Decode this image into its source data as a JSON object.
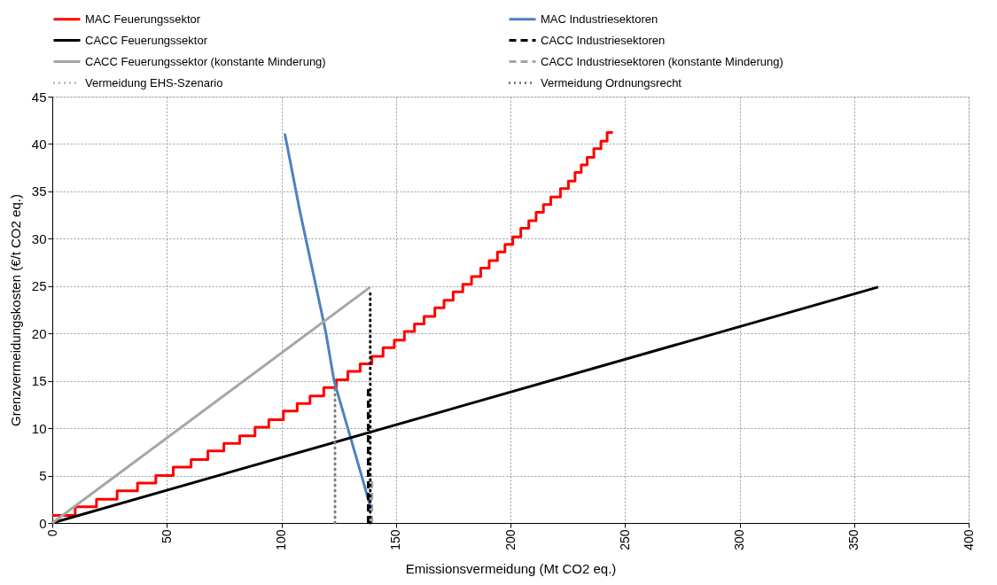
{
  "chart_data": {
    "type": "line",
    "xlabel": "Emissionsvermeidung (Mt CO2 eq.)",
    "ylabel": "Grenzvermeidungskosten (€/t CO2 eq.)",
    "xlim": [
      0,
      400
    ],
    "xticks": [
      0,
      50,
      100,
      150,
      200,
      250,
      300,
      350,
      400
    ],
    "ylim": [
      0,
      45
    ],
    "yticks": [
      0,
      5,
      10,
      15,
      20,
      25,
      30,
      35,
      40,
      45
    ],
    "grid": true,
    "legend": "top",
    "series": [
      {
        "name": "MAC Feuerungssektor",
        "type": "step",
        "color": "#ff0000",
        "line_style": "solid",
        "x": [
          0,
          10,
          19.3,
          28.3,
          37.2,
          45.2,
          52.8,
          60.6,
          67.9,
          74.9,
          81.8,
          88.5,
          94.5,
          100.9,
          106.9,
          112.5,
          118.5,
          124,
          129,
          134.4,
          139.5,
          144.4,
          149.3,
          153.7,
          158.1,
          162.3,
          167,
          171,
          175,
          179.2,
          183,
          187,
          190.7,
          194.3,
          197.6,
          201,
          204.5,
          208,
          211.2,
          214.4,
          217.6,
          221.8,
          225.3,
          228.2,
          230.9,
          233.5,
          236.4,
          239.5,
          242.2,
          244.7
        ],
        "values": [
          0.8,
          1.7,
          2.5,
          3.4,
          4.2,
          5.0,
          5.9,
          6.7,
          7.6,
          8.4,
          9.2,
          10.1,
          10.9,
          11.8,
          12.6,
          13.4,
          14.3,
          15.1,
          16.0,
          16.8,
          17.6,
          18.5,
          19.3,
          20.2,
          21.0,
          21.8,
          22.7,
          23.5,
          24.4,
          25.2,
          26.0,
          26.9,
          27.7,
          28.6,
          29.4,
          30.2,
          31.1,
          31.9,
          32.8,
          33.6,
          34.4,
          35.3,
          36.1,
          37.0,
          37.8,
          38.6,
          39.5,
          40.3,
          41.2,
          41.2
        ]
      },
      {
        "name": "MAC Industriesektoren",
        "type": "line",
        "color": "#4f81bd",
        "line_style": "solid",
        "x": [
          101.5,
          108,
          115.1,
          119.5,
          123,
          129,
          135,
          139.1
        ],
        "values": [
          41.1,
          33,
          25,
          20,
          15,
          10,
          5,
          1.5
        ]
      },
      {
        "name": "CACC Feuerungssektor",
        "type": "line",
        "color": "#000000",
        "line_style": "solid",
        "x": [
          0,
          360.5
        ],
        "values": [
          0,
          24.9
        ]
      },
      {
        "name": "CACC Industriesektoren",
        "type": "line",
        "color": "#000000",
        "line_style": "dashed",
        "x": [
          137.9,
          137.9
        ],
        "values": [
          0,
          14.3
        ]
      },
      {
        "name": "CACC Feuerungssektor (konstante Minderung)",
        "type": "line",
        "color": "#a6a6a6",
        "line_style": "solid",
        "x": [
          0,
          138.8
        ],
        "values": [
          0,
          24.9
        ]
      },
      {
        "name": "CACC Industriesektoren (konstante Minderung)",
        "type": "line",
        "color": "#a6a6a6",
        "line_style": "dashed",
        "x": [
          139.5,
          139.5
        ],
        "values": [
          0,
          5
        ]
      },
      {
        "name": "Vermeidung EHS-Szenario",
        "type": "line",
        "color": "#808080",
        "line_style": "dotted",
        "x": [
          123.4,
          123.4
        ],
        "values": [
          0,
          14.2
        ]
      },
      {
        "name": "Vermeidung Ordnungsrecht",
        "type": "line",
        "color": "#000000",
        "line_style": "dotted",
        "x": [
          138.8,
          138.8
        ],
        "values": [
          0,
          24.2
        ]
      }
    ]
  }
}
